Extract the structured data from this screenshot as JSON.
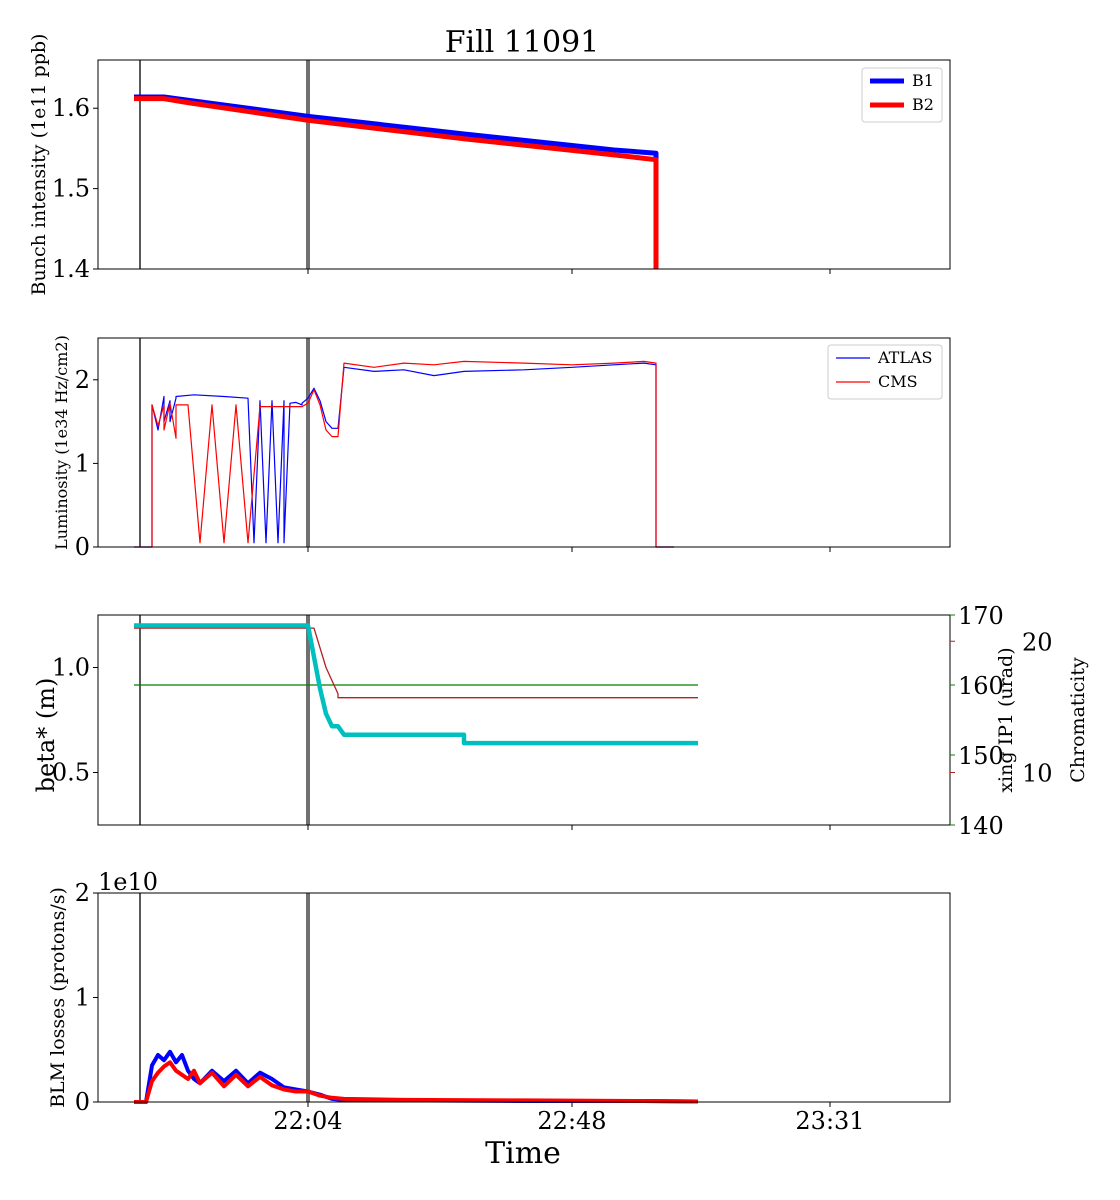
{
  "figure": {
    "title": "Fill 11091",
    "xlabel": "Time",
    "xticks": [
      "22:04",
      "22:48",
      "23:31"
    ]
  },
  "colors": {
    "b1": "#0000ff",
    "b2": "#ff0000",
    "atlas": "#0000ff",
    "cms": "#ff0000",
    "beta": "#00bfbf",
    "xing": "#008000",
    "chroma": "#b22222",
    "marker_thin": "#000000",
    "marker_thick": "#707070"
  },
  "chart_data": [
    {
      "type": "line",
      "panel": "intensity",
      "xlabel": "",
      "ylabel": "Bunch intensity (1e11 ppb)",
      "ylim": [
        1.4,
        1.66
      ],
      "yticks": [
        "1.4",
        "1.5",
        "1.6"
      ],
      "legend": "top-right",
      "series": [
        {
          "name": "B1",
          "x": [
            "21:35",
            "21:40",
            "21:44",
            "22:04",
            "22:30",
            "22:55",
            "23:02",
            "23:02"
          ],
          "values": [
            1.614,
            1.614,
            1.61,
            1.59,
            1.568,
            1.548,
            1.544,
            1.4
          ]
        },
        {
          "name": "B2",
          "x": [
            "21:35",
            "21:40",
            "21:44",
            "22:04",
            "22:30",
            "22:55",
            "23:02",
            "23:02"
          ],
          "values": [
            1.612,
            1.612,
            1.607,
            1.585,
            1.562,
            1.542,
            1.536,
            1.4
          ]
        }
      ]
    },
    {
      "type": "line",
      "panel": "luminosity",
      "xlabel": "",
      "ylabel": "Luminosity (1e34 Hz/cm2)",
      "ylim": [
        0,
        2.5
      ],
      "yticks": [
        "0",
        "1",
        "2"
      ],
      "legend": "top-right",
      "series": [
        {
          "name": "ATLAS",
          "x": [
            "21:35",
            "21:38",
            "21:38",
            "21:39",
            "21:40",
            "21:40",
            "21:41",
            "21:41",
            "21:42",
            "21:42",
            "21:45",
            "21:50",
            "21:54",
            "21:55",
            "21:56",
            "21:57",
            "21:58",
            "21:59",
            "22:00",
            "22:00",
            "22:01",
            "22:01",
            "22:02",
            "22:03",
            "22:03",
            "22:04",
            "22:05",
            "22:06",
            "22:07",
            "22:08",
            "22:09",
            "22:10",
            "22:15",
            "22:20",
            "22:25",
            "22:30",
            "22:40",
            "22:48",
            "22:55",
            "23:00",
            "23:02",
            "23:02",
            "23:05"
          ],
          "values": [
            0,
            0,
            1.7,
            1.4,
            1.8,
            1.5,
            1.75,
            1.5,
            1.78,
            1.8,
            1.82,
            1.8,
            1.78,
            0.05,
            1.75,
            0.05,
            1.75,
            0.05,
            1.75,
            0.05,
            1.72,
            1.72,
            1.73,
            1.7,
            1.72,
            1.78,
            1.9,
            1.75,
            1.5,
            1.42,
            1.42,
            2.15,
            2.1,
            2.12,
            2.05,
            2.1,
            2.12,
            2.15,
            2.18,
            2.2,
            2.18,
            0,
            0
          ]
        },
        {
          "name": "CMS",
          "x": [
            "21:35",
            "21:38",
            "21:38",
            "21:39",
            "21:40",
            "21:40",
            "21:41",
            "21:42",
            "21:42",
            "21:44",
            "21:46",
            "21:48",
            "21:50",
            "21:52",
            "21:54",
            "21:56",
            "21:58",
            "22:00",
            "22:01",
            "22:02",
            "22:03",
            "22:04",
            "22:05",
            "22:06",
            "22:07",
            "22:08",
            "22:09",
            "22:10",
            "22:15",
            "22:20",
            "22:25",
            "22:30",
            "22:40",
            "22:48",
            "22:55",
            "23:00",
            "23:02",
            "23:02",
            "23:05"
          ],
          "values": [
            0,
            0,
            1.7,
            1.45,
            1.7,
            1.4,
            1.72,
            1.3,
            1.7,
            1.7,
            0.05,
            1.7,
            0.05,
            1.7,
            0.05,
            1.68,
            1.68,
            1.68,
            1.68,
            1.68,
            1.68,
            1.72,
            1.88,
            1.7,
            1.4,
            1.32,
            1.32,
            2.2,
            2.15,
            2.2,
            2.18,
            2.22,
            2.2,
            2.18,
            2.2,
            2.22,
            2.2,
            0,
            0
          ]
        }
      ]
    },
    {
      "type": "line",
      "panel": "optics",
      "xlabel": "",
      "ylabel": "beta* (m)",
      "ylabel_right": "xing IP1 (urad)",
      "ylabel_right2": "Chromaticity",
      "ylim": [
        0.25,
        1.25
      ],
      "ylim_right": [
        140,
        170
      ],
      "ylim_right2": [
        6,
        22
      ],
      "yticks": [
        "0.5",
        "1.0"
      ],
      "yticks_right": [
        "140",
        "150",
        "160",
        "170"
      ],
      "yticks_right2": [
        "10",
        "20"
      ],
      "series": [
        {
          "name": "beta* (m)",
          "axis": "left",
          "x": [
            "21:35",
            "22:04",
            "22:05",
            "22:06",
            "22:07",
            "22:08",
            "22:09",
            "22:10",
            "22:30",
            "22:30",
            "23:09"
          ],
          "values": [
            1.2,
            1.2,
            1.05,
            0.9,
            0.78,
            0.72,
            0.72,
            0.68,
            0.68,
            0.64,
            0.64
          ]
        },
        {
          "name": "xing IP1 (urad)",
          "axis": "right",
          "x": [
            "21:35",
            "23:09"
          ],
          "values": [
            160,
            160
          ]
        },
        {
          "name": "Chromaticity",
          "axis": "right2",
          "x": [
            "21:35",
            "22:04",
            "22:05",
            "22:07",
            "22:09",
            "22:09",
            "23:09"
          ],
          "values": [
            21,
            21,
            21,
            18,
            16,
            15.7,
            15.7
          ]
        }
      ]
    },
    {
      "type": "line",
      "panel": "losses",
      "xlabel": "Time",
      "ylabel": "BLM losses (protons/s)",
      "offset_text": "1e10",
      "ylim": [
        0,
        2
      ],
      "yticks": [
        "0",
        "1",
        "2"
      ],
      "series": [
        {
          "name": "B1",
          "x": [
            "21:35",
            "21:37",
            "21:38",
            "21:39",
            "21:40",
            "21:41",
            "21:42",
            "21:43",
            "21:44",
            "21:45",
            "21:46",
            "21:48",
            "21:50",
            "21:52",
            "21:54",
            "21:56",
            "21:58",
            "22:00",
            "22:02",
            "22:04",
            "22:06",
            "22:08",
            "22:10",
            "22:20",
            "22:40",
            "23:00",
            "23:09"
          ],
          "values": [
            0,
            0,
            0.35,
            0.45,
            0.4,
            0.48,
            0.38,
            0.45,
            0.3,
            0.22,
            0.18,
            0.3,
            0.2,
            0.3,
            0.18,
            0.28,
            0.22,
            0.14,
            0.12,
            0.1,
            0.07,
            0.03,
            0.02,
            0.015,
            0.01,
            0.01,
            0.005
          ]
        },
        {
          "name": "B2",
          "x": [
            "21:35",
            "21:37",
            "21:38",
            "21:39",
            "21:40",
            "21:41",
            "21:42",
            "21:43",
            "21:44",
            "21:45",
            "21:46",
            "21:48",
            "21:50",
            "21:52",
            "21:54",
            "21:56",
            "21:58",
            "22:00",
            "22:02",
            "22:04",
            "22:06",
            "22:08",
            "22:10",
            "22:20",
            "22:40",
            "23:00",
            "23:09"
          ],
          "values": [
            0,
            0,
            0.2,
            0.28,
            0.34,
            0.38,
            0.3,
            0.26,
            0.22,
            0.3,
            0.18,
            0.28,
            0.15,
            0.26,
            0.15,
            0.24,
            0.16,
            0.12,
            0.1,
            0.1,
            0.06,
            0.04,
            0.03,
            0.02,
            0.015,
            0.01,
            0.005
          ]
        }
      ]
    }
  ]
}
